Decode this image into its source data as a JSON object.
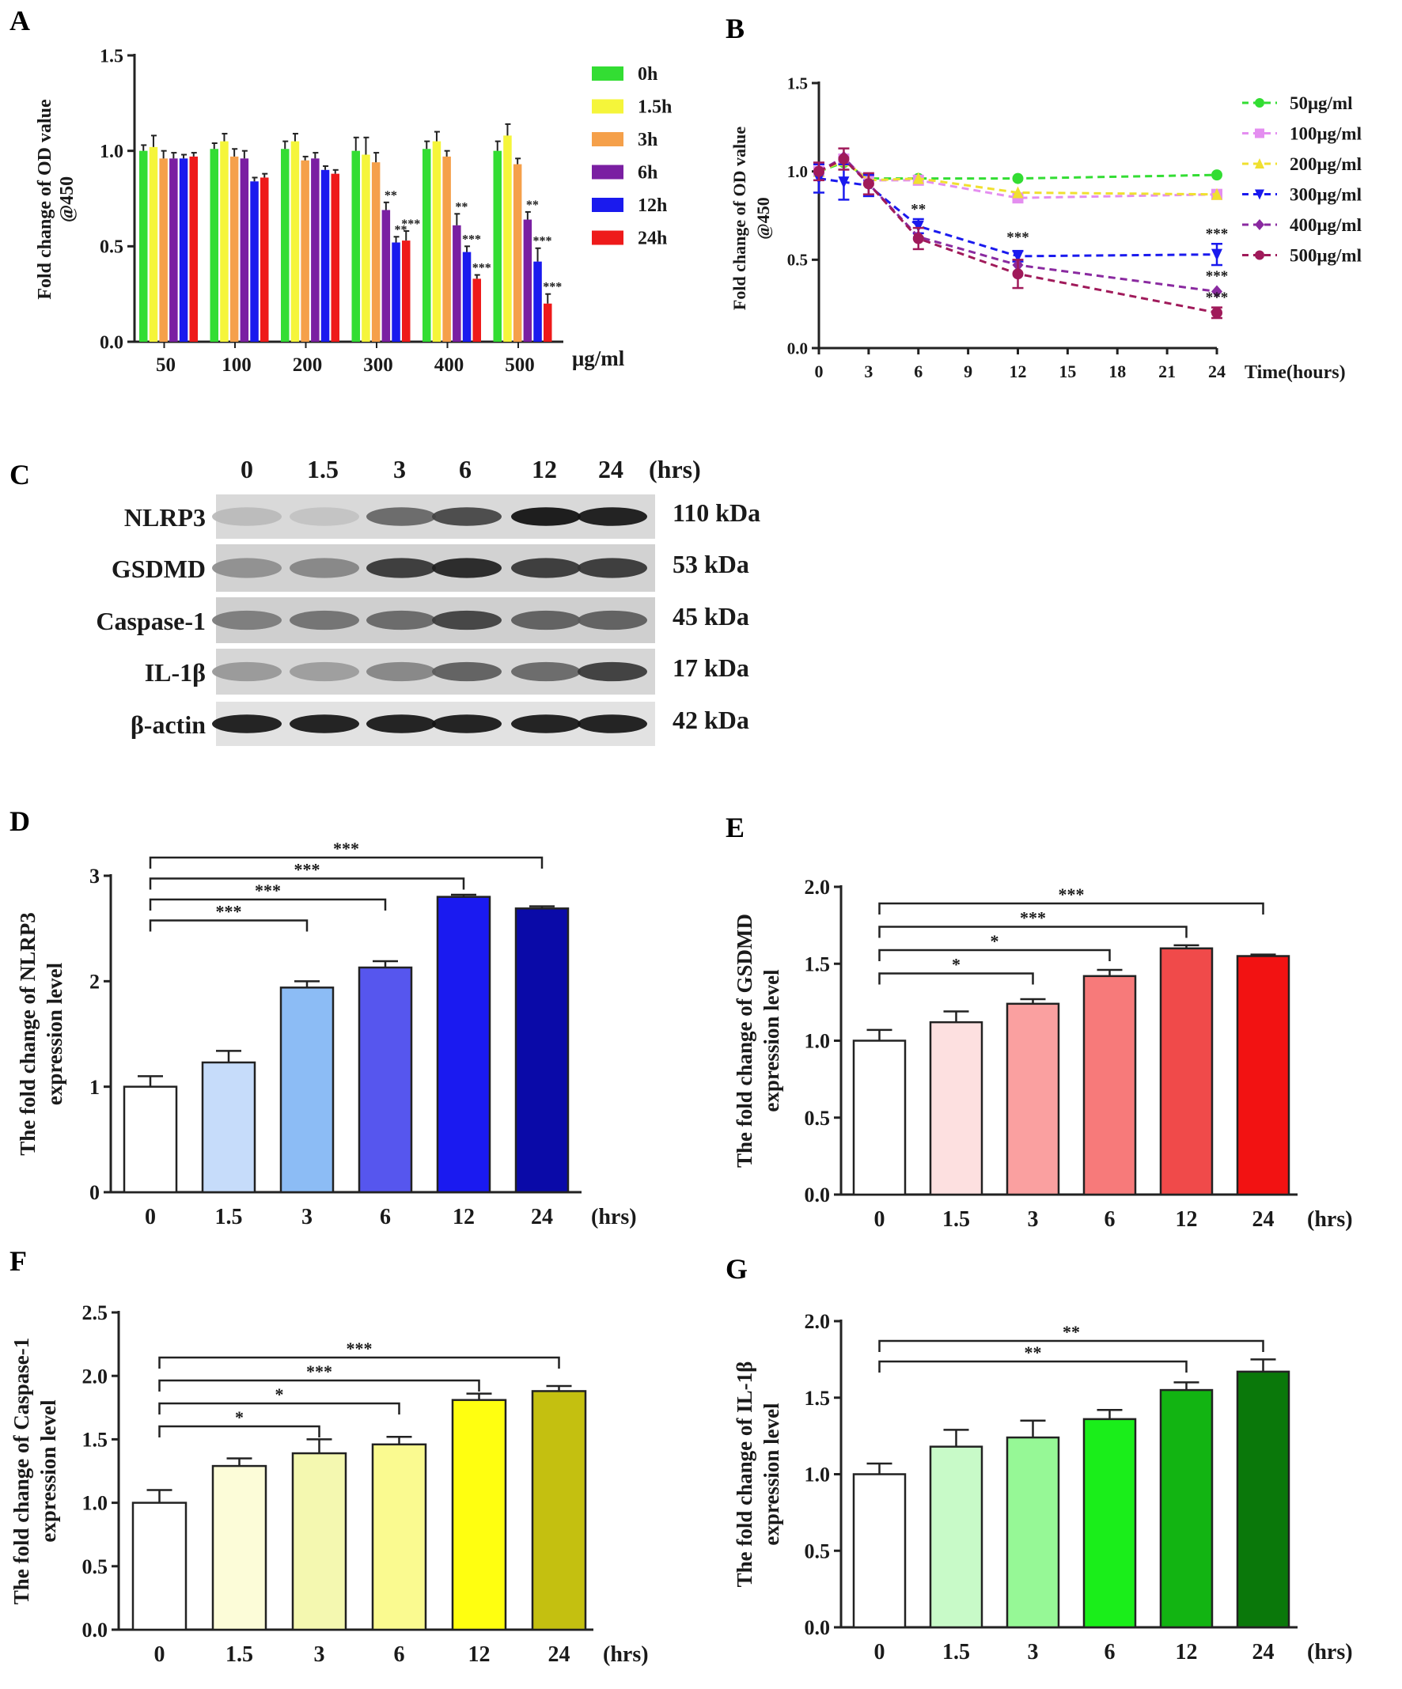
{
  "panel_labels": {
    "A": "A",
    "B": "B",
    "C": "C",
    "D": "D",
    "E": "E",
    "F": "F",
    "G": "G"
  },
  "chart_data": [
    {
      "id": "A",
      "type": "bar",
      "ylabel": "Fold change of OD value @450",
      "xlabel": "μg/ml",
      "categories": [
        "50",
        "100",
        "200",
        "300",
        "400",
        "500"
      ],
      "ylim": [
        0,
        1.5
      ],
      "yticks": [
        "0.0",
        "0.5",
        "1.0",
        "1.5"
      ],
      "legend_position": "right",
      "series": [
        {
          "name": "0h",
          "color": "#33dd33",
          "values": [
            1.0,
            1.01,
            1.01,
            1.0,
            1.01,
            1.0
          ],
          "errors": [
            0.03,
            0.03,
            0.04,
            0.07,
            0.04,
            0.05
          ]
        },
        {
          "name": "1.5h",
          "color": "#f5f53a",
          "values": [
            1.02,
            1.05,
            1.05,
            0.98,
            1.05,
            1.08
          ],
          "errors": [
            0.06,
            0.04,
            0.04,
            0.09,
            0.05,
            0.06
          ]
        },
        {
          "name": "3h",
          "color": "#f5a04a",
          "values": [
            0.96,
            0.97,
            0.95,
            0.94,
            0.97,
            0.93
          ],
          "errors": [
            0.04,
            0.04,
            0.02,
            0.05,
            0.03,
            0.03
          ]
        },
        {
          "name": "6h",
          "color": "#7a1fa2",
          "values": [
            0.96,
            0.96,
            0.96,
            0.69,
            0.61,
            0.64
          ],
          "errors": [
            0.03,
            0.04,
            0.03,
            0.04,
            0.06,
            0.04
          ]
        },
        {
          "name": "12h",
          "color": "#1a1aee",
          "values": [
            0.96,
            0.84,
            0.9,
            0.52,
            0.47,
            0.42
          ],
          "errors": [
            0.02,
            0.02,
            0.02,
            0.03,
            0.03,
            0.07
          ]
        },
        {
          "name": "24h",
          "color": "#ee1a1a",
          "values": [
            0.97,
            0.86,
            0.88,
            0.53,
            0.33,
            0.2
          ],
          "errors": [
            0.02,
            0.02,
            0.02,
            0.05,
            0.02,
            0.05
          ]
        }
      ],
      "annotations": [
        {
          "group": 3,
          "series": 3,
          "text": "**"
        },
        {
          "group": 3,
          "series": 4,
          "text": "**"
        },
        {
          "group": 3,
          "series": 5,
          "text": "***"
        },
        {
          "group": 4,
          "series": 3,
          "text": "**"
        },
        {
          "group": 4,
          "series": 4,
          "text": "***"
        },
        {
          "group": 4,
          "series": 5,
          "text": "***"
        },
        {
          "group": 5,
          "series": 3,
          "text": "**"
        },
        {
          "group": 5,
          "series": 4,
          "text": "***"
        },
        {
          "group": 5,
          "series": 5,
          "text": "***"
        }
      ]
    },
    {
      "id": "B",
      "type": "line",
      "ylabel": "Fold change of OD value @450",
      "xlabel": "Time(hours)",
      "xlim": [
        0,
        24
      ],
      "xticks": [
        "0",
        "3",
        "6",
        "9",
        "12",
        "15",
        "18",
        "21",
        "24"
      ],
      "ylim": [
        0,
        1.5
      ],
      "yticks": [
        "0.0",
        "0.5",
        "1.0",
        "1.5"
      ],
      "x": [
        0,
        1.5,
        3,
        6,
        12,
        24
      ],
      "legend_position": "right",
      "series": [
        {
          "name": "50μg/ml",
          "color": "#33dd33",
          "marker": "circle",
          "values": [
            1.0,
            1.05,
            0.96,
            0.96,
            0.96,
            0.98
          ]
        },
        {
          "name": "100μg/ml",
          "color": "#e48ef0",
          "marker": "square",
          "values": [
            1.0,
            1.07,
            0.95,
            0.95,
            0.85,
            0.87
          ]
        },
        {
          "name": "200μg/ml",
          "color": "#f0e030",
          "marker": "triangle",
          "values": [
            1.0,
            1.06,
            0.95,
            0.96,
            0.88,
            0.87
          ]
        },
        {
          "name": "300μg/ml",
          "color": "#1a1aee",
          "marker": "tri-down",
          "values": [
            0.96,
            0.94,
            0.92,
            0.69,
            0.52,
            0.53
          ],
          "errors": [
            0.08,
            0.1,
            0.06,
            0.04,
            0.03,
            0.06
          ]
        },
        {
          "name": "400μg/ml",
          "color": "#8a2aa0",
          "marker": "diamond",
          "values": [
            1.0,
            1.08,
            0.93,
            0.63,
            0.47,
            0.32
          ]
        },
        {
          "name": "500μg/ml",
          "color": "#a01a5a",
          "marker": "circle",
          "values": [
            1.0,
            1.07,
            0.93,
            0.62,
            0.42,
            0.2
          ],
          "errors": [
            0.05,
            0.06,
            0.06,
            0.06,
            0.08,
            0.03
          ]
        }
      ],
      "annotations": [
        {
          "x": 6,
          "y": 0.76,
          "text": "**"
        },
        {
          "x": 12,
          "y": 0.6,
          "text": "***"
        },
        {
          "x": 24,
          "y": 0.62,
          "text": "***"
        },
        {
          "x": 24,
          "y": 0.38,
          "text": "***"
        },
        {
          "x": 24,
          "y": 0.26,
          "text": "***"
        }
      ]
    },
    {
      "id": "D",
      "type": "bar",
      "ylabel_lines": [
        "The fold change of NLRP3",
        "expression level"
      ],
      "xlabel": "(hrs)",
      "categories": [
        "0",
        "1.5",
        "3",
        "6",
        "12",
        "24"
      ],
      "ylim": [
        0,
        3
      ],
      "yticks": [
        "0",
        "1",
        "2",
        "3"
      ],
      "values": [
        1.0,
        1.23,
        1.94,
        2.13,
        2.8,
        2.69
      ],
      "errors": [
        0.1,
        0.11,
        0.06,
        0.06,
        0.02,
        0.02
      ],
      "colors": [
        "#ffffff",
        "#c6dcfa",
        "#8cbcf5",
        "#5656ee",
        "#1a1af0",
        "#0a0aa8"
      ],
      "brackets": [
        {
          "from": 0,
          "to": 2,
          "text": "***"
        },
        {
          "from": 0,
          "to": 3,
          "text": "***"
        },
        {
          "from": 0,
          "to": 4,
          "text": "***"
        },
        {
          "from": 0,
          "to": 5,
          "text": "***"
        }
      ]
    },
    {
      "id": "E",
      "type": "bar",
      "ylabel_lines": [
        "The fold change of GSDMD",
        "expression level"
      ],
      "xlabel": "(hrs)",
      "categories": [
        "0",
        "1.5",
        "3",
        "6",
        "12",
        "24"
      ],
      "ylim": [
        0,
        2.0
      ],
      "yticks": [
        "0.0",
        "0.5",
        "1.0",
        "1.5",
        "2.0"
      ],
      "values": [
        1.0,
        1.12,
        1.24,
        1.42,
        1.6,
        1.55
      ],
      "errors": [
        0.07,
        0.07,
        0.03,
        0.04,
        0.02,
        0.01
      ],
      "colors": [
        "#ffffff",
        "#fde0e0",
        "#faa0a0",
        "#f77a7a",
        "#f04a4a",
        "#f21212"
      ],
      "brackets": [
        {
          "from": 0,
          "to": 2,
          "text": "*"
        },
        {
          "from": 0,
          "to": 3,
          "text": "*"
        },
        {
          "from": 0,
          "to": 4,
          "text": "***"
        },
        {
          "from": 0,
          "to": 5,
          "text": "***"
        }
      ]
    },
    {
      "id": "F",
      "type": "bar",
      "ylabel_lines": [
        "The fold change of Caspase-1",
        "expression level"
      ],
      "xlabel": "(hrs)",
      "categories": [
        "0",
        "1.5",
        "3",
        "6",
        "12",
        "24"
      ],
      "ylim": [
        0,
        2.5
      ],
      "yticks": [
        "0.0",
        "0.5",
        "1.0",
        "1.5",
        "2.0",
        "2.5"
      ],
      "values": [
        1.0,
        1.29,
        1.39,
        1.46,
        1.81,
        1.88
      ],
      "errors": [
        0.1,
        0.06,
        0.11,
        0.06,
        0.05,
        0.04
      ],
      "colors": [
        "#ffffff",
        "#fcfcd8",
        "#f4f8b0",
        "#fafa90",
        "#ffff10",
        "#c4c010"
      ],
      "brackets": [
        {
          "from": 0,
          "to": 2,
          "text": "*"
        },
        {
          "from": 0,
          "to": 3,
          "text": "*"
        },
        {
          "from": 0,
          "to": 4,
          "text": "***"
        },
        {
          "from": 0,
          "to": 5,
          "text": "***"
        }
      ]
    },
    {
      "id": "G",
      "type": "bar",
      "ylabel_lines": [
        "The fold change of IL-1β",
        "expression level"
      ],
      "xlabel": "(hrs)",
      "categories": [
        "0",
        "1.5",
        "3",
        "6",
        "12",
        "24"
      ],
      "ylim": [
        0,
        2.0
      ],
      "yticks": [
        "0.0",
        "0.5",
        "1.0",
        "1.5",
        "2.0"
      ],
      "values": [
        1.0,
        1.18,
        1.24,
        1.36,
        1.55,
        1.67
      ],
      "errors": [
        0.07,
        0.11,
        0.11,
        0.06,
        0.05,
        0.08
      ],
      "colors": [
        "#ffffff",
        "#c8fac8",
        "#96f896",
        "#1aee1a",
        "#12b412",
        "#0a780a"
      ],
      "brackets": [
        {
          "from": 0,
          "to": 4,
          "text": "**"
        },
        {
          "from": 0,
          "to": 5,
          "text": "**"
        }
      ]
    }
  ],
  "western_blot": {
    "id": "C",
    "lanes": [
      "0",
      "1.5",
      "3",
      "6",
      "12",
      "24"
    ],
    "unit": "(hrs)",
    "proteins": [
      {
        "name": "NLRP3",
        "kda": "110 kDa",
        "intensity": [
          0.12,
          0.08,
          0.55,
          0.72,
          0.98,
          0.95
        ],
        "bg": "#d9d9d9"
      },
      {
        "name": "GSDMD",
        "kda": "53 kDa",
        "intensity": [
          0.35,
          0.4,
          0.8,
          0.9,
          0.8,
          0.8
        ],
        "bg": "#d2d2d2"
      },
      {
        "name": "Caspase-1",
        "kda": "45 kDa",
        "intensity": [
          0.45,
          0.5,
          0.55,
          0.75,
          0.6,
          0.6
        ],
        "bg": "#cfcfcf"
      },
      {
        "name": "IL-1β",
        "kda": "17 kDa",
        "intensity": [
          0.3,
          0.28,
          0.4,
          0.6,
          0.55,
          0.78
        ],
        "bg": "#d6d6d6"
      },
      {
        "name": "β-actin",
        "kda": "42 kDa",
        "intensity": [
          0.95,
          0.95,
          0.95,
          0.95,
          0.95,
          0.95
        ],
        "bg": "#e2e2e2"
      }
    ]
  }
}
